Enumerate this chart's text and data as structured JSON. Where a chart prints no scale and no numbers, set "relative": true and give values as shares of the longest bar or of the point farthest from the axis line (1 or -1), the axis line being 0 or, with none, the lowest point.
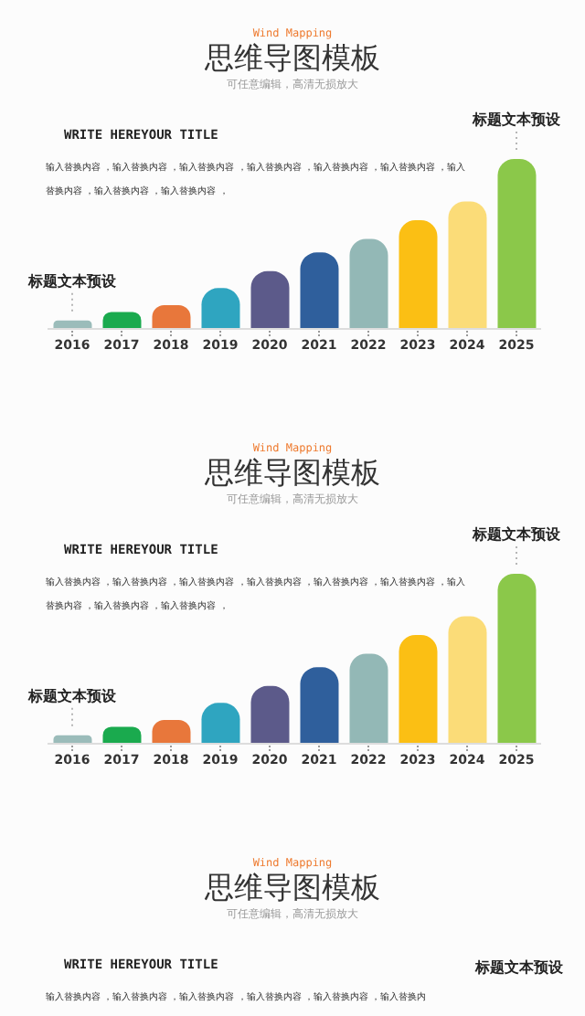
{
  "chart_data": [
    {
      "type": "bar",
      "relative": true,
      "title": "思维导图模板",
      "subtitle": "可任意编辑，高清无损放大",
      "annotations": [
        "Wind Mapping",
        "WRITE HEREYOUR TITLE",
        "输入替换内容 ，输入替换内容 ，输入替换内容 ，输入替换内容 ，输入替换内容 ，输入替换内容 ，输入替换内容 ，输入替换内容 ，输入替换内容 ，",
        {
          "text": "标题文本预设",
          "x": "2016",
          "y": 0.05
        },
        {
          "text": "标题文本预设",
          "x": "2025",
          "y": 1
        }
      ],
      "categories": [
        "2016",
        "2017",
        "2018",
        "2019",
        "2020",
        "2021",
        "2022",
        "2023",
        "2024",
        "2025"
      ],
      "values": [
        0.05,
        0.1,
        0.14,
        0.24,
        0.34,
        0.45,
        0.53,
        0.64,
        0.75,
        1
      ],
      "colors": [
        "#9bbcba",
        "#1aaa4e",
        "#e8773b",
        "#2fa5c0",
        "#5c5a8a",
        "#2f5f9c",
        "#93b8b6",
        "#fbbf14",
        "#fbdc78",
        "#8bc84a"
      ]
    },
    {
      "type": "bar",
      "relative": true,
      "title": "思维导图模板",
      "subtitle": "可任意编辑，高清无损放大",
      "annotations": [
        "Wind Mapping",
        "WRITE HEREYOUR TITLE",
        "输入替换内容 ，输入替换内容 ，输入替换内容 ，输入替换内容 ，输入替换内容 ，输入替换内容 ，输入替换内容 ，输入替换内容 ，输入替换内容 ，",
        {
          "text": "标题文本预设",
          "x": "2016",
          "y": 0.05
        },
        {
          "text": "标题文本预设",
          "x": "2025",
          "y": 1
        }
      ],
      "categories": [
        "2016",
        "2017",
        "2018",
        "2019",
        "2020",
        "2021",
        "2022",
        "2023",
        "2024",
        "2025"
      ],
      "values": [
        0.05,
        0.1,
        0.14,
        0.24,
        0.34,
        0.45,
        0.53,
        0.64,
        0.75,
        1
      ],
      "colors": [
        "#9bbcba",
        "#1aaa4e",
        "#e8773b",
        "#2fa5c0",
        "#5c5a8a",
        "#2f5f9c",
        "#93b8b6",
        "#fbbf14",
        "#fbdc78",
        "#8bc84a"
      ]
    },
    {
      "type": "other",
      "title": "思维导图模板",
      "subtitle": "可任意编辑，高清无损放大",
      "annotations": [
        "Wind Mapping",
        "WRITE HEREYOUR TITLE",
        "输入替换内容 ，输入替换内容 ，输入替换内容 ，输入替换内容 ，输入替换内容 ，输入替换内",
        "标题文本预设"
      ]
    }
  ]
}
